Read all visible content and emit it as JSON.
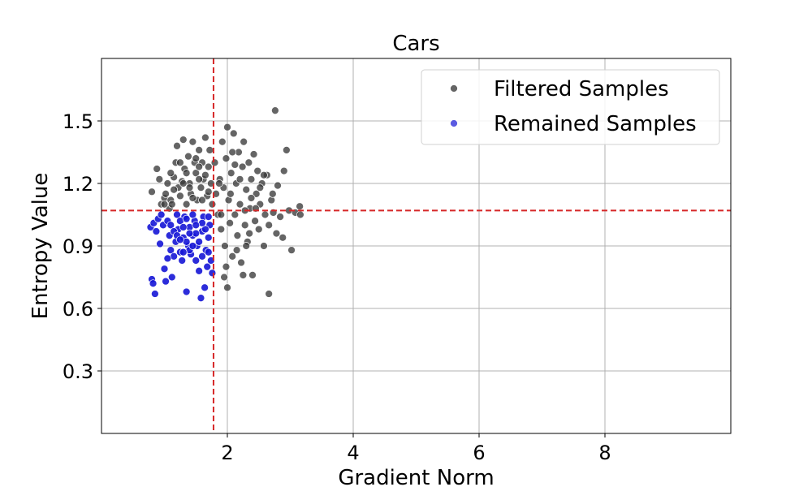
{
  "chart_data": {
    "type": "scatter",
    "title": "Cars",
    "xlabel": "Gradient Norm",
    "ylabel": "Entropy Value",
    "xlim": [
      0.0,
      10.0
    ],
    "ylim": [
      0.0,
      1.8
    ],
    "xticks": [
      2,
      4,
      6,
      8
    ],
    "yticks": [
      0.3,
      0.6,
      0.9,
      1.2,
      1.5
    ],
    "xtick_labels": [
      "2",
      "4",
      "6",
      "8"
    ],
    "ytick_labels": [
      "0.3",
      "0.6",
      "0.9",
      "1.2",
      "1.5"
    ],
    "grid": true,
    "legend_position": "top-right",
    "thresholds": {
      "x": 1.78,
      "y": 1.07,
      "color": "#d62728",
      "style": "dashed"
    },
    "series": [
      {
        "name": "Filtered Samples",
        "color": "#3a3a3a",
        "points": [
          [
            0.8,
            1.16
          ],
          [
            0.88,
            1.27
          ],
          [
            0.92,
            1.22
          ],
          [
            0.95,
            1.1
          ],
          [
            1.0,
            1.13
          ],
          [
            1.02,
            1.15
          ],
          [
            1.05,
            1.2
          ],
          [
            1.08,
            1.08
          ],
          [
            1.1,
            1.12
          ],
          [
            1.12,
            1.1
          ],
          [
            1.15,
            1.23
          ],
          [
            1.18,
            1.3
          ],
          [
            1.2,
            1.38
          ],
          [
            1.22,
            1.18
          ],
          [
            1.25,
            1.14
          ],
          [
            1.28,
            1.21
          ],
          [
            1.3,
            1.41
          ],
          [
            1.32,
            1.27
          ],
          [
            1.35,
            1.1
          ],
          [
            1.38,
            1.33
          ],
          [
            1.4,
            1.2
          ],
          [
            1.42,
            1.15
          ],
          [
            1.45,
            1.4
          ],
          [
            1.48,
            1.3
          ],
          [
            1.5,
            1.25
          ],
          [
            1.52,
            1.12
          ],
          [
            1.55,
            1.36
          ],
          [
            1.58,
            1.18
          ],
          [
            1.6,
            1.3
          ],
          [
            1.62,
            1.22
          ],
          [
            1.65,
            1.42
          ],
          [
            1.68,
            1.14
          ],
          [
            1.7,
            1.28
          ],
          [
            1.72,
            1.36
          ],
          [
            1.74,
            1.2
          ],
          [
            1.76,
            1.1
          ],
          [
            1.8,
            1.3
          ],
          [
            1.82,
            1.15
          ],
          [
            1.85,
            1.05
          ],
          [
            1.88,
            1.22
          ],
          [
            1.9,
            0.98
          ],
          [
            1.92,
            1.4
          ],
          [
            1.94,
            1.18
          ],
          [
            1.96,
            0.9
          ],
          [
            1.98,
            1.32
          ],
          [
            2.0,
            1.47
          ],
          [
            2.02,
            1.12
          ],
          [
            2.04,
            1.01
          ],
          [
            2.06,
            1.25
          ],
          [
            2.08,
            0.85
          ],
          [
            2.1,
            1.44
          ],
          [
            2.12,
            1.05
          ],
          [
            2.14,
            1.2
          ],
          [
            2.16,
            0.95
          ],
          [
            2.18,
            1.35
          ],
          [
            2.2,
            1.1
          ],
          [
            2.22,
            0.82
          ],
          [
            2.24,
            1.28
          ],
          [
            2.26,
            1.4
          ],
          [
            2.28,
            1.0
          ],
          [
            2.3,
            1.17
          ],
          [
            2.32,
            0.92
          ],
          [
            2.34,
            1.3
          ],
          [
            2.36,
            1.08
          ],
          [
            2.38,
            1.22
          ],
          [
            2.4,
            0.76
          ],
          [
            2.42,
            1.34
          ],
          [
            2.44,
            1.02
          ],
          [
            2.46,
            1.15
          ],
          [
            2.48,
            1.26
          ],
          [
            2.5,
            0.98
          ],
          [
            2.52,
            1.1
          ],
          [
            2.55,
            1.2
          ],
          [
            2.58,
            0.9
          ],
          [
            2.6,
            1.05
          ],
          [
            2.63,
            1.24
          ],
          [
            2.66,
            0.67
          ],
          [
            2.7,
            1.12
          ],
          [
            2.73,
            1.06
          ],
          [
            2.76,
            1.55
          ],
          [
            2.78,
            0.96
          ],
          [
            2.8,
            1.19
          ],
          [
            2.84,
            1.04
          ],
          [
            2.88,
            0.94
          ],
          [
            2.9,
            1.26
          ],
          [
            2.94,
            1.36
          ],
          [
            2.98,
            1.07
          ],
          [
            3.02,
            0.88
          ],
          [
            3.08,
            1.06
          ],
          [
            3.15,
            1.09
          ],
          [
            3.16,
            1.05
          ],
          [
            2.0,
            0.7
          ],
          [
            1.95,
            0.75
          ],
          [
            1.98,
            0.8
          ],
          [
            2.15,
            0.88
          ],
          [
            2.25,
            0.76
          ],
          [
            2.3,
            0.9
          ],
          [
            2.35,
            0.96
          ],
          [
            1.9,
            1.05
          ],
          [
            1.87,
            1.2
          ],
          [
            2.05,
            1.15
          ],
          [
            2.08,
            1.35
          ],
          [
            2.12,
            1.29
          ],
          [
            2.2,
            1.22
          ],
          [
            2.28,
            1.07
          ],
          [
            2.38,
            1.13
          ],
          [
            2.45,
            1.08
          ],
          [
            2.52,
            1.18
          ],
          [
            2.58,
            1.24
          ],
          [
            2.66,
            1.0
          ],
          [
            2.72,
            1.15
          ],
          [
            1.3,
            1.2
          ],
          [
            1.35,
            1.25
          ],
          [
            1.4,
            1.18
          ],
          [
            1.45,
            1.13
          ],
          [
            1.5,
            1.32
          ],
          [
            1.55,
            1.22
          ],
          [
            1.6,
            1.12
          ],
          [
            1.65,
            1.24
          ],
          [
            1.7,
            1.16
          ],
          [
            1.1,
            1.25
          ],
          [
            1.15,
            1.17
          ],
          [
            1.0,
            1.1
          ],
          [
            1.25,
            1.3
          ],
          [
            1.55,
            1.28
          ]
        ]
      },
      {
        "name": "Remained Samples",
        "color": "#1515d6",
        "points": [
          [
            0.8,
            0.74
          ],
          [
            0.82,
            0.72
          ],
          [
            0.85,
            0.67
          ],
          [
            0.78,
            0.99
          ],
          [
            0.83,
            1.01
          ],
          [
            0.87,
            0.97
          ],
          [
            0.9,
            1.03
          ],
          [
            0.93,
            0.91
          ],
          [
            0.95,
            1.05
          ],
          [
            0.98,
            1.0
          ],
          [
            1.0,
            0.79
          ],
          [
            1.02,
            0.73
          ],
          [
            1.05,
            1.02
          ],
          [
            1.08,
            0.95
          ],
          [
            1.1,
            0.88
          ],
          [
            1.12,
            0.75
          ],
          [
            1.15,
            0.85
          ],
          [
            1.18,
            0.92
          ],
          [
            1.2,
            1.05
          ],
          [
            1.22,
            0.98
          ],
          [
            1.25,
            0.87
          ],
          [
            1.28,
            0.83
          ],
          [
            1.3,
            0.94
          ],
          [
            1.32,
            1.04
          ],
          [
            1.35,
            0.68
          ],
          [
            1.38,
            0.9
          ],
          [
            1.4,
            0.99
          ],
          [
            1.42,
            0.86
          ],
          [
            1.45,
            0.95
          ],
          [
            1.48,
            1.02
          ],
          [
            1.5,
            0.83
          ],
          [
            1.52,
            0.9
          ],
          [
            1.55,
            0.78
          ],
          [
            1.58,
            0.65
          ],
          [
            1.6,
            0.97
          ],
          [
            1.62,
            1.04
          ],
          [
            1.64,
            0.7
          ],
          [
            1.66,
            0.88
          ],
          [
            1.68,
            0.8
          ],
          [
            1.7,
            0.94
          ],
          [
            1.72,
            1.0
          ],
          [
            1.74,
            0.83
          ],
          [
            1.76,
            0.77
          ],
          [
            1.1,
            1.0
          ],
          [
            1.15,
            0.97
          ],
          [
            1.2,
            0.95
          ],
          [
            1.25,
            1.02
          ],
          [
            1.3,
            0.99
          ],
          [
            1.35,
            0.92
          ],
          [
            1.4,
            0.88
          ],
          [
            1.45,
            1.05
          ],
          [
            1.5,
            0.96
          ],
          [
            1.55,
            0.92
          ],
          [
            1.6,
            0.85
          ],
          [
            1.65,
            0.98
          ],
          [
            1.7,
            0.87
          ],
          [
            1.35,
            1.03
          ],
          [
            1.45,
            0.9
          ],
          [
            1.25,
            0.93
          ],
          [
            1.05,
            0.84
          ],
          [
            1.6,
            1.01
          ],
          [
            1.7,
            1.04
          ],
          [
            1.4,
            0.96
          ],
          [
            1.5,
            1.0
          ],
          [
            1.3,
            0.87
          ]
        ]
      }
    ]
  }
}
